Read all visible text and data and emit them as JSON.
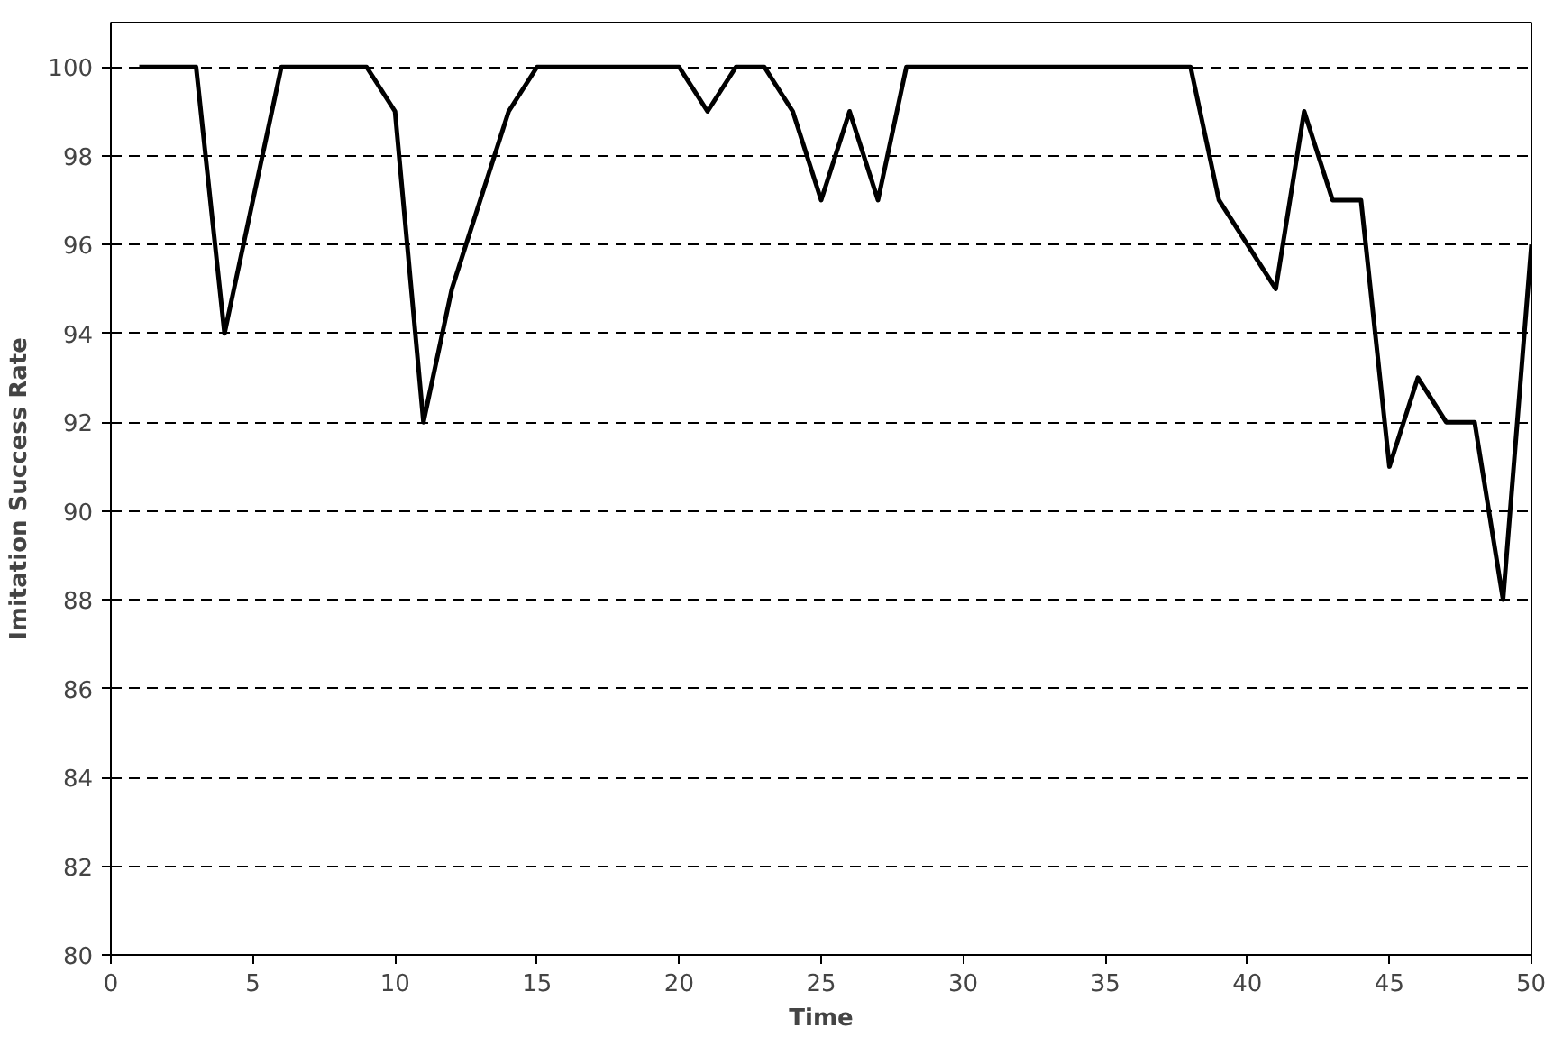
{
  "chart_data": {
    "type": "line",
    "xlabel": "Time",
    "ylabel": "Imitation Success Rate",
    "x": [
      1,
      2,
      3,
      4,
      5,
      6,
      7,
      8,
      9,
      10,
      11,
      12,
      13,
      14,
      15,
      16,
      17,
      18,
      19,
      20,
      21,
      22,
      23,
      24,
      25,
      26,
      27,
      28,
      29,
      30,
      31,
      32,
      33,
      34,
      35,
      36,
      37,
      38,
      39,
      40,
      41,
      42,
      43,
      44,
      45,
      46,
      47,
      48,
      49,
      50
    ],
    "series": [
      {
        "color": "#000000",
        "values": [
          100,
          100,
          100,
          94,
          97,
          100,
          100,
          100,
          100,
          99,
          92,
          95,
          97,
          99,
          100,
          100,
          100,
          100,
          100,
          100,
          99,
          100,
          100,
          99,
          97,
          99,
          97,
          100,
          100,
          100,
          100,
          100,
          100,
          100,
          100,
          100,
          100,
          100,
          97,
          96,
          95,
          99,
          97,
          97,
          91,
          93,
          92,
          92,
          88,
          96
        ]
      }
    ],
    "xlim": [
      0,
      50
    ],
    "ylim": [
      80,
      101
    ],
    "xticks": [
      0,
      5,
      10,
      15,
      20,
      25,
      30,
      35,
      40,
      45,
      50
    ],
    "yticks": [
      80,
      82,
      84,
      86,
      88,
      90,
      92,
      94,
      96,
      98,
      100
    ],
    "grid": "y",
    "line_style": "solid",
    "marker": "none"
  }
}
